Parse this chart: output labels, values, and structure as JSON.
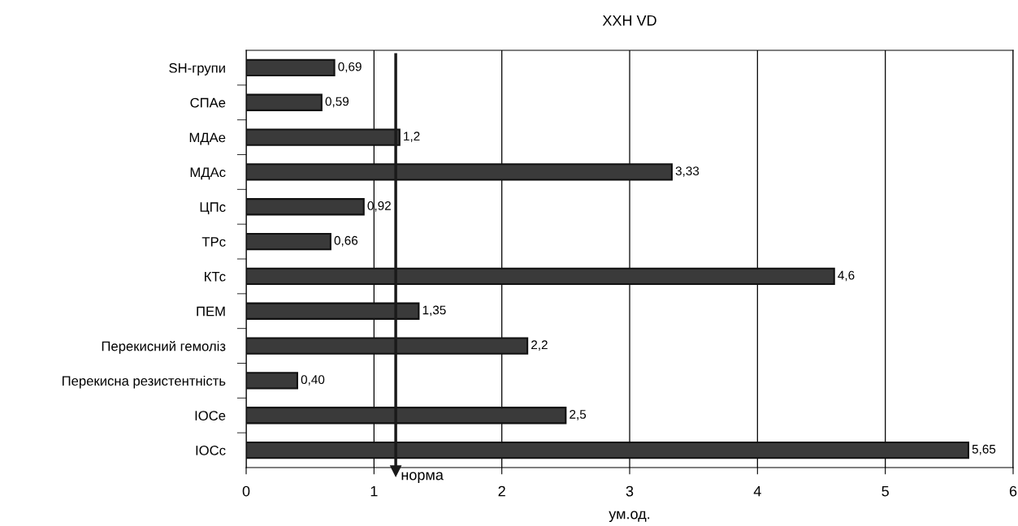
{
  "chart_data": {
    "type": "bar",
    "orientation": "horizontal",
    "title": "ХХН VD",
    "xlabel": "ум.од.",
    "categories": [
      "SH-групи",
      "СПАе",
      "МДАе",
      "МДАс",
      "ЦПс",
      "ТРс",
      "КТс",
      "ПЕМ",
      "Перекисний гемоліз",
      "Перекисна резистентність",
      "ІОСе",
      "ІОСс"
    ],
    "values": [
      0.69,
      0.59,
      1.2,
      3.33,
      0.92,
      0.66,
      4.6,
      1.35,
      2.2,
      0.4,
      2.5,
      5.65
    ],
    "value_labels": [
      "0,69",
      "0,59",
      "1,2",
      "3,33",
      "0,92",
      "0,66",
      "4,6",
      "1,35",
      "2,2",
      "0,40",
      "2,5",
      "5,65"
    ],
    "color": "#3a3a3a",
    "xlim": [
      0,
      6
    ],
    "xticks": [
      0,
      1,
      2,
      3,
      4,
      5,
      6
    ],
    "grid": "x",
    "ref_lines": [
      {
        "axis": "x",
        "value": 1.17,
        "label": "норма",
        "color": "#1a1a1a"
      }
    ]
  }
}
